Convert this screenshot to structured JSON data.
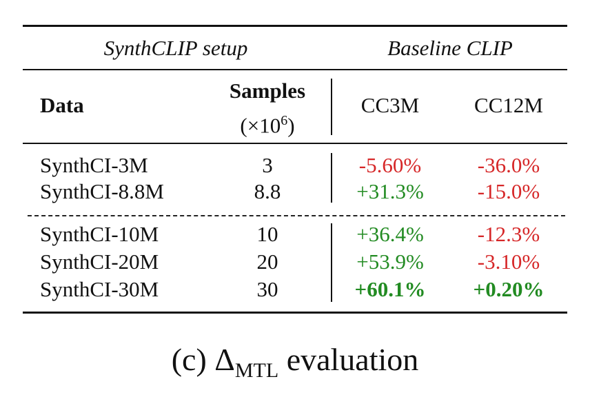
{
  "header": {
    "group_left": "SynthCLIP setup",
    "group_right": "Baseline CLIP",
    "col_data": "Data",
    "col_samples": "Samples",
    "col_samples_unit_prefix": "(×10",
    "col_samples_unit_exp": "6",
    "col_samples_unit_suffix": ")",
    "col_cc3m": "CC3M",
    "col_cc12m": "CC12M"
  },
  "rows": [
    {
      "data": "SynthCI-3M",
      "samples": "3",
      "cc3m": "-5.60%",
      "cc12m": "-36.0%"
    },
    {
      "data": "SynthCI-8.8M",
      "samples": "8.8",
      "cc3m": "+31.3%",
      "cc12m": "-15.0%"
    },
    {
      "data": "SynthCI-10M",
      "samples": "10",
      "cc3m": "+36.4%",
      "cc12m": "-12.3%"
    },
    {
      "data": "SynthCI-20M",
      "samples": "20",
      "cc3m": "+53.9%",
      "cc12m": "-3.10%"
    },
    {
      "data": "SynthCI-30M",
      "samples": "30",
      "cc3m": "+60.1%",
      "cc12m": "+0.20%"
    }
  ],
  "colors": {
    "negative": "#d62728",
    "positive": "#228b22"
  },
  "caption": {
    "prefix": "(c) Δ",
    "subscript": "MTL",
    "suffix": " evaluation"
  }
}
